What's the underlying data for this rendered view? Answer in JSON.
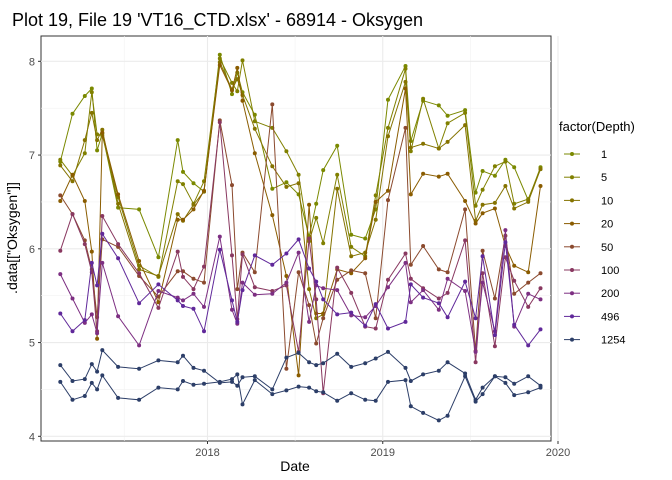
{
  "chart_data": {
    "type": "line",
    "title": "Plot 19, File 19 'VT16_CTD.xlsx' - 68914  -  Oksygen",
    "xlabel": "Date",
    "ylabel": ".data[[\"Oksygen\"]]",
    "xlim": [
      2017.05,
      2019.96
    ],
    "ylim": [
      3.95,
      8.27
    ],
    "xticks": [
      {
        "value": 2018,
        "label": "2018"
      },
      {
        "value": 2019,
        "label": "2019"
      },
      {
        "value": 2020,
        "label": "2020"
      }
    ],
    "yticks": [
      {
        "value": 4,
        "label": "4"
      },
      {
        "value": 5,
        "label": "5"
      },
      {
        "value": 6,
        "label": "6"
      },
      {
        "value": 7,
        "label": "7"
      },
      {
        "value": 8,
        "label": "8"
      }
    ],
    "grid": true,
    "legend_title": "factor(Depth)",
    "legend_position": "right",
    "dates": [
      2017.16,
      2017.23,
      2017.3,
      2017.34,
      2017.37,
      2017.4,
      2017.49,
      2017.61,
      2017.72,
      2017.83,
      2017.86,
      2017.92,
      2017.98,
      2018.07,
      2018.14,
      2018.17,
      2018.2,
      2018.27,
      2018.37,
      2018.45,
      2018.52,
      2018.58,
      2018.62,
      2018.66,
      2018.74,
      2018.82,
      2018.9,
      2018.96,
      2019.03,
      2019.13,
      2019.16,
      2019.23,
      2019.32,
      2019.37,
      2019.47,
      2019.53,
      2019.57,
      2019.64,
      2019.7,
      2019.75,
      2019.83,
      2019.9
    ],
    "series": [
      {
        "name": "1",
        "color": "#7a8900",
        "values": [
          6.93,
          7.44,
          7.63,
          7.71,
          7.05,
          7.23,
          6.44,
          6.42,
          5.91,
          7.16,
          6.82,
          6.7,
          6.61,
          8.07,
          7.65,
          7.88,
          7.67,
          7.43,
          6.64,
          6.71,
          6.58,
          6.13,
          6.48,
          6.84,
          7.1,
          6.15,
          6.11,
          6.42,
          7.59,
          7.95,
          7.15,
          7.58,
          7.53,
          7.42,
          7.48,
          6.6,
          6.83,
          6.78,
          6.95,
          6.87,
          6.52,
          6.87
        ]
      },
      {
        "name": "5",
        "color": "#808000",
        "values": [
          6.95,
          6.78,
          7.02,
          7.67,
          7.22,
          7.21,
          6.55,
          5.82,
          5.7,
          6.72,
          6.69,
          6.48,
          6.72,
          8.03,
          7.77,
          7.68,
          8.01,
          7.36,
          7.29,
          7.04,
          6.79,
          6.08,
          6.33,
          6.06,
          6.79,
          6.02,
          5.92,
          6.57,
          7.29,
          7.92,
          7.04,
          7.6,
          7.07,
          7.34,
          7.45,
          6.46,
          6.63,
          6.88,
          6.93,
          6.48,
          6.53,
          6.85
        ]
      },
      {
        "name": "10",
        "color": "#857300",
        "values": [
          6.89,
          6.72,
          7.16,
          7.45,
          7.16,
          7.27,
          6.48,
          5.78,
          5.71,
          6.37,
          6.3,
          6.47,
          6.61,
          7.99,
          7.7,
          7.81,
          7.64,
          7.28,
          6.88,
          6.66,
          6.7,
          5.57,
          5.26,
          5.3,
          6.64,
          5.92,
          5.96,
          6.31,
          7.2,
          7.78,
          7.08,
          7.12,
          7.07,
          7.14,
          7.32,
          6.3,
          6.47,
          6.49,
          6.67,
          6.43,
          6.5,
          6.85
        ]
      },
      {
        "name": "20",
        "color": "#8a5c00",
        "values": [
          6.51,
          6.79,
          6.51,
          5.97,
          5.04,
          7.24,
          6.58,
          5.87,
          5.43,
          6.31,
          6.31,
          6.42,
          6.62,
          7.96,
          7.69,
          7.93,
          7.58,
          7.02,
          6.36,
          5.71,
          4.65,
          6.47,
          5.31,
          5.31,
          5.78,
          5.74,
          5.9,
          6.5,
          6.62,
          7.71,
          6.58,
          6.8,
          6.77,
          6.8,
          6.51,
          6.27,
          6.38,
          6.43,
          6.03,
          5.82,
          5.75,
          6.67
        ]
      },
      {
        "name": "50",
        "color": "#8b4a2e",
        "values": [
          6.57,
          6.37,
          6.09,
          5.78,
          5.27,
          6.1,
          6.02,
          5.71,
          5.49,
          5.76,
          5.76,
          5.68,
          5.64,
          7.37,
          6.68,
          5.57,
          5.96,
          5.75,
          7.54,
          4.72,
          5.75,
          5.4,
          4.99,
          5.26,
          5.67,
          5.77,
          5.74,
          5.26,
          6.52,
          7.29,
          5.83,
          6.03,
          5.78,
          5.75,
          6.42,
          4.91,
          5.98,
          5.47,
          6.14,
          5.52,
          5.64,
          5.74
        ]
      },
      {
        "name": "100",
        "color": "#893860",
        "values": [
          5.98,
          6.37,
          6.05,
          5.75,
          5.12,
          6.35,
          6.05,
          5.74,
          5.37,
          5.97,
          5.7,
          5.57,
          5.81,
          7.35,
          5.93,
          5.25,
          5.94,
          5.59,
          5.55,
          5.61,
          4.9,
          6.11,
          5.46,
          4.46,
          5.8,
          5.53,
          5.17,
          5.15,
          5.67,
          5.95,
          5.68,
          5.58,
          5.47,
          5.53,
          6.09,
          4.79,
          5.74,
          4.96,
          5.91,
          5.66,
          5.38,
          5.58
        ]
      },
      {
        "name": "200",
        "color": "#7d2f82",
        "values": [
          5.73,
          5.47,
          5.21,
          5.3,
          5.1,
          5.85,
          5.28,
          4.97,
          5.55,
          5.48,
          5.45,
          5.52,
          5.38,
          6.13,
          5.35,
          5.2,
          5.64,
          5.51,
          5.52,
          5.64,
          5.96,
          5.22,
          5.61,
          5.58,
          5.56,
          5.29,
          5.27,
          5.39,
          5.59,
          5.85,
          5.43,
          5.56,
          5.35,
          5.68,
          5.55,
          4.9,
          5.64,
          5.12,
          6.2,
          5.17,
          5.52,
          5.46
        ]
      },
      {
        "name": "496",
        "color": "#60289a",
        "values": [
          5.31,
          5.12,
          5.24,
          5.85,
          5.61,
          6.16,
          5.9,
          5.42,
          5.62,
          5.45,
          5.39,
          5.36,
          5.12,
          5.99,
          5.45,
          5.22,
          5.56,
          5.93,
          5.83,
          5.95,
          6.1,
          5.79,
          5.65,
          5.46,
          5.3,
          5.32,
          5.18,
          5.41,
          5.15,
          5.22,
          5.62,
          5.48,
          5.42,
          5.27,
          5.65,
          5.26,
          5.92,
          5.08,
          6.07,
          5.19,
          4.97,
          5.14
        ]
      },
      {
        "name": "1254",
        "color": "#2c3e68",
        "values": [
          4.76,
          4.59,
          4.61,
          4.77,
          4.69,
          4.92,
          4.74,
          4.72,
          4.81,
          4.79,
          4.86,
          4.73,
          4.7,
          4.57,
          4.58,
          4.54,
          4.63,
          4.64,
          4.5,
          4.84,
          4.89,
          4.79,
          4.76,
          4.78,
          4.88,
          4.74,
          4.78,
          4.83,
          4.9,
          4.73,
          4.59,
          4.66,
          4.7,
          4.79,
          4.67,
          4.39,
          4.52,
          4.64,
          4.63,
          4.56,
          4.64,
          4.54
        ]
      }
    ],
    "bottom_series": [
      4.58,
      4.39,
      4.43,
      4.57,
      4.5,
      4.65,
      4.41,
      4.39,
      4.52,
      4.5,
      4.59,
      4.55,
      4.56,
      4.58,
      4.61,
      4.66,
      4.34,
      4.6,
      4.45,
      4.49,
      4.53,
      4.52,
      4.48,
      4.47,
      4.38,
      4.46,
      4.39,
      4.38,
      4.58,
      4.6,
      4.32,
      4.25,
      4.17,
      4.22,
      4.64,
      4.37,
      4.45,
      4.64,
      4.57,
      4.44,
      4.47,
      4.52
    ]
  }
}
